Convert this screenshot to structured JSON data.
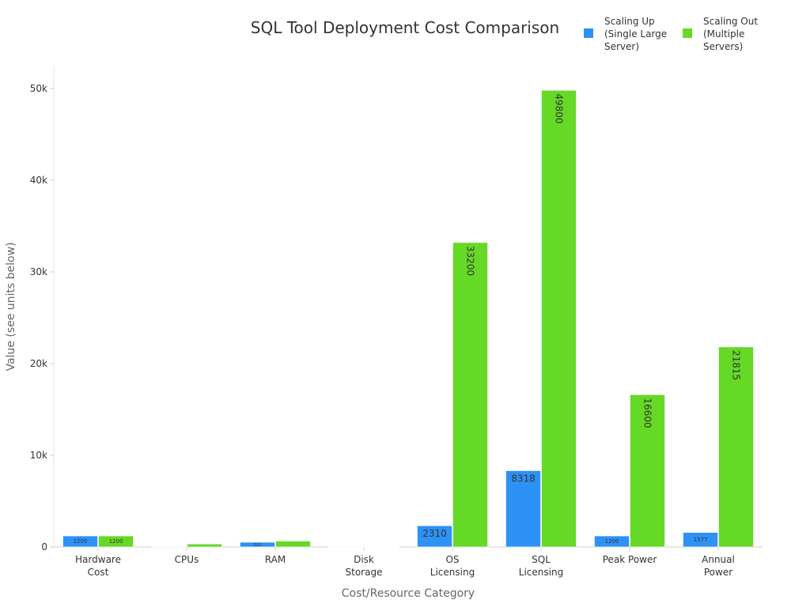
{
  "chart_data": {
    "type": "bar",
    "title": "SQL Tool Deployment Cost Comparison",
    "xlabel": "Cost/Resource Category",
    "ylabel": "Value (see units below)",
    "ylim": [
      0,
      52500
    ],
    "yticks": [
      0,
      10000,
      20000,
      30000,
      40000,
      50000
    ],
    "ytick_labels": [
      "0",
      "10k",
      "20k",
      "30k",
      "40k",
      "50k"
    ],
    "legend_position": "top-right",
    "categories": [
      [
        "Hardware",
        "Cost"
      ],
      [
        "CPUs"
      ],
      [
        "RAM"
      ],
      [
        "Disk",
        "Storage"
      ],
      [
        "OS",
        "Licensing"
      ],
      [
        "SQL",
        "Licensing"
      ],
      [
        "Peak Power"
      ],
      [
        "Annual",
        "Power"
      ]
    ],
    "series": [
      {
        "name": "Scaling Up (Single Large Server)",
        "legend_lines": [
          "Scaling Up",
          "(Single Large",
          "Server)"
        ],
        "color": "#2e91f5",
        "values": [
          1200,
          48,
          512,
          10,
          2310,
          8318,
          1200,
          1577
        ],
        "labels": [
          "1200",
          "",
          "512",
          "",
          "2310",
          "8318",
          "1200",
          "1577"
        ]
      },
      {
        "name": "Scaling Out (Multiple Servers)",
        "legend_lines": [
          "Scaling Out",
          "(Multiple",
          "Servers)"
        ],
        "color": "#66d926",
        "values": [
          1200,
          320,
          640,
          20,
          33200,
          49800,
          16600,
          21815
        ],
        "labels": [
          "1200",
          "",
          "",
          "",
          "33200",
          "49800",
          "16600",
          "21815"
        ]
      }
    ]
  }
}
